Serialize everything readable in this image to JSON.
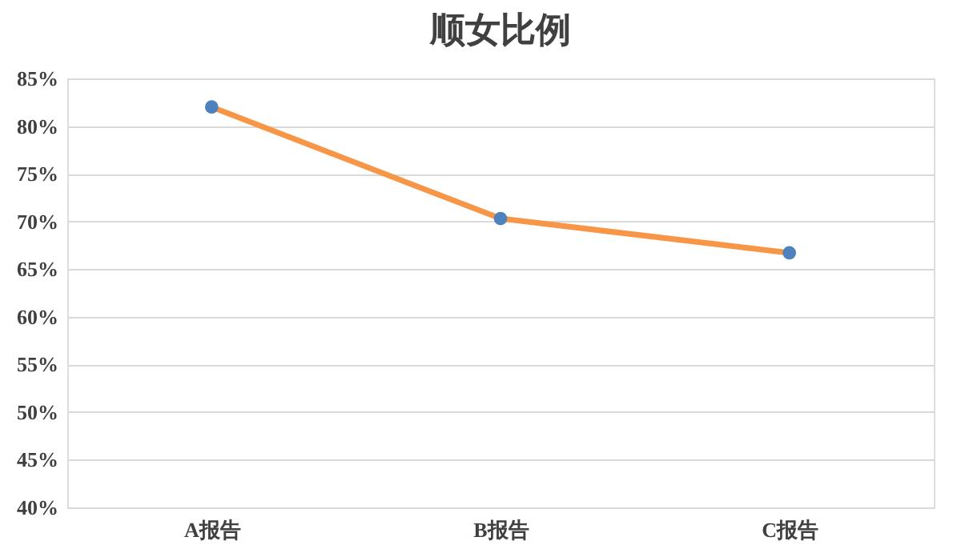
{
  "chart_data": {
    "type": "line",
    "title": "顺女比例",
    "categories": [
      "A报告",
      "B报告",
      "C报告"
    ],
    "series": [
      {
        "color": "#f79646",
        "colors": [
          "#4f81bd",
          "#4f81bd",
          "#4f81bd"
        ],
        "values": [
          82,
          70.3,
          66.7
        ]
      }
    ],
    "ylim": [
      40,
      85
    ],
    "yticks": [
      {
        "value": 40,
        "label": "40%"
      },
      {
        "value": 45,
        "label": "45%"
      },
      {
        "value": 50,
        "label": "50%"
      },
      {
        "value": 55,
        "label": "55%"
      },
      {
        "value": 60,
        "label": "60%"
      },
      {
        "value": 65,
        "label": "65%"
      },
      {
        "value": 70,
        "label": "70%"
      },
      {
        "value": 75,
        "label": "75%"
      },
      {
        "value": 80,
        "label": "80%"
      },
      {
        "value": 85,
        "label": "85%"
      }
    ],
    "grid": "y",
    "marker": "circle",
    "line_style": "solid"
  }
}
